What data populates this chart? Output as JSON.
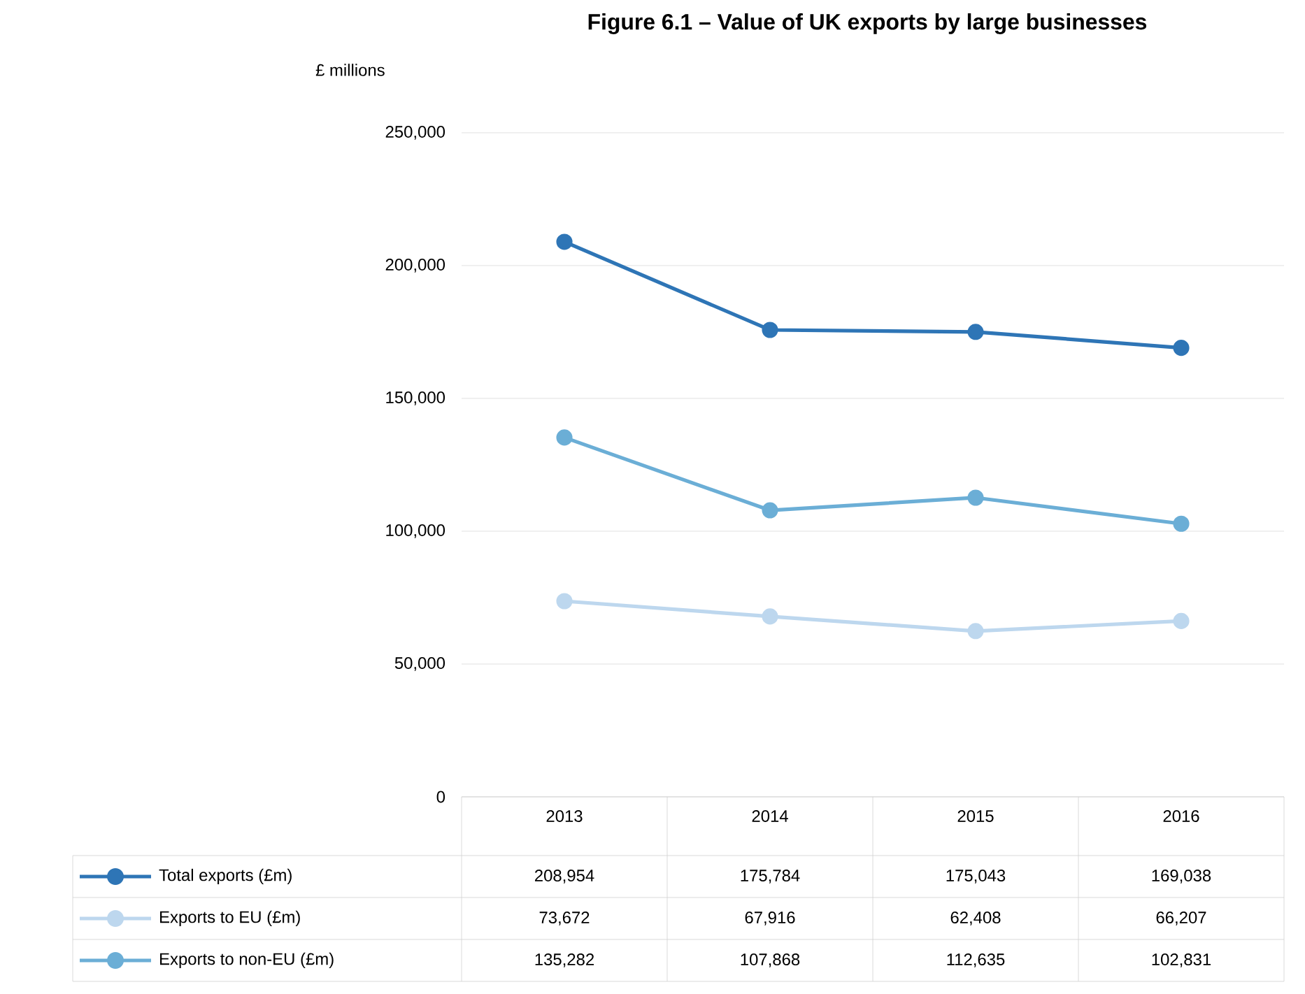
{
  "chart_data": {
    "type": "line",
    "title": "Figure 6.1 – Value of UK exports by large businesses",
    "ylabel": "£ millions",
    "categories": [
      "2013",
      "2014",
      "2015",
      "2016"
    ],
    "series": [
      {
        "name": "Total exports (£m)",
        "color": "#2e75b6",
        "values": [
          208954,
          175784,
          175043,
          169038
        ],
        "value_labels": [
          "208,954",
          "175,784",
          "175,043",
          "169,038"
        ]
      },
      {
        "name": "Exports to EU (£m)",
        "color": "#bdd7ee",
        "values": [
          73672,
          67916,
          62408,
          66207
        ],
        "value_labels": [
          "73,672",
          "67,916",
          "62,408",
          "66,207"
        ]
      },
      {
        "name": "Exports to non-EU (£m)",
        "color": "#6baed6",
        "values": [
          135282,
          107868,
          112635,
          102831
        ],
        "value_labels": [
          "135,282",
          "107,868",
          "112,635",
          "102,831"
        ]
      }
    ],
    "ylim": [
      0,
      250000
    ],
    "yticks": [
      {
        "value": 0,
        "label": "0"
      },
      {
        "value": 50000,
        "label": "50,000"
      },
      {
        "value": 100000,
        "label": "100,000"
      },
      {
        "value": 150000,
        "label": "150,000"
      },
      {
        "value": 200000,
        "label": "200,000"
      },
      {
        "value": 250000,
        "label": "250,000"
      }
    ],
    "grid": "y",
    "legend": "bottom",
    "marker": "circle",
    "line_style": "solid"
  }
}
